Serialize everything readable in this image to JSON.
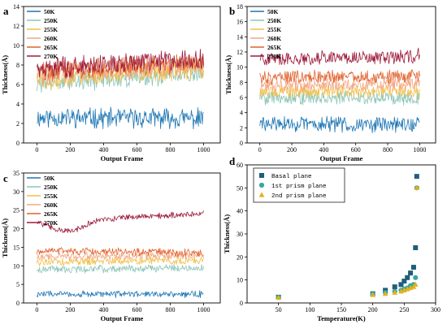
{
  "colors": {
    "50K": "#1f77b4",
    "250K": "#8cc5b7",
    "255K": "#f2c04a",
    "260K": "#f4a582",
    "265K": "#e0622e",
    "270K": "#9e1b3c",
    "basal": "#1f5e7a",
    "prism1": "#3aa6a3",
    "prism2": "#e3b21c"
  },
  "chart_data": [
    {
      "panel": "a",
      "type": "line",
      "xlabel": "Output Frame",
      "ylabel": "Thickness(Å)",
      "xlim": [
        -80,
        1100
      ],
      "ylim": [
        0,
        14
      ],
      "xticks": [
        0,
        200,
        400,
        600,
        800,
        1000
      ],
      "yticks": [
        0,
        2,
        4,
        6,
        8,
        10,
        12,
        14
      ],
      "legend_position": "top-left",
      "series": [
        {
          "name": "50K",
          "color_key": "50K",
          "start": 2.6,
          "end": 2.5,
          "noise": 0.9
        },
        {
          "name": "250K",
          "color_key": "250K",
          "start": 6.0,
          "end": 7.2,
          "noise": 0.9
        },
        {
          "name": "255K",
          "color_key": "255K",
          "start": 6.5,
          "end": 7.6,
          "noise": 0.9
        },
        {
          "name": "260K",
          "color_key": "260K",
          "start": 7.0,
          "end": 8.0,
          "noise": 0.9
        },
        {
          "name": "265K",
          "color_key": "265K",
          "start": 7.3,
          "end": 8.3,
          "noise": 0.9
        },
        {
          "name": "270K",
          "color_key": "270K",
          "start": 7.6,
          "end": 8.7,
          "noise": 0.9
        }
      ]
    },
    {
      "panel": "b",
      "type": "line",
      "xlabel": "Output Frame",
      "ylabel": "Thickness(Å)",
      "xlim": [
        -80,
        1100
      ],
      "ylim": [
        0,
        18
      ],
      "xticks": [
        0,
        200,
        400,
        600,
        800,
        1000
      ],
      "yticks": [
        0,
        2,
        4,
        6,
        8,
        10,
        12,
        14,
        16,
        18
      ],
      "legend_position": "top-left",
      "series": [
        {
          "name": "50K",
          "color_key": "50K",
          "start": 2.5,
          "end": 2.4,
          "noise": 0.9
        },
        {
          "name": "250K",
          "color_key": "250K",
          "start": 6.0,
          "end": 6.0,
          "noise": 0.8
        },
        {
          "name": "255K",
          "color_key": "255K",
          "start": 6.8,
          "end": 6.8,
          "noise": 0.8
        },
        {
          "name": "260K",
          "color_key": "260K",
          "start": 7.6,
          "end": 7.7,
          "noise": 0.8
        },
        {
          "name": "265K",
          "color_key": "265K",
          "start": 8.6,
          "end": 8.8,
          "noise": 0.8
        },
        {
          "name": "270K",
          "color_key": "270K",
          "start": 11.0,
          "end": 11.5,
          "noise": 0.8
        }
      ]
    },
    {
      "panel": "c",
      "type": "line",
      "xlabel": "Output Frame",
      "ylabel": "Thickness(Å)",
      "xlim": [
        -80,
        1100
      ],
      "ylim": [
        0,
        35
      ],
      "xticks": [
        0,
        200,
        400,
        600,
        800,
        1000
      ],
      "yticks": [
        0,
        5,
        10,
        15,
        20,
        25,
        30,
        35
      ],
      "legend_position": "top-left",
      "series": [
        {
          "name": "50K",
          "color_key": "50K",
          "start": 2.4,
          "end": 2.4,
          "noise": 0.8
        },
        {
          "name": "250K",
          "color_key": "250K",
          "start": 9.0,
          "end": 9.5,
          "noise": 0.9
        },
        {
          "name": "255K",
          "color_key": "255K",
          "start": 11.0,
          "end": 11.5,
          "noise": 0.9
        },
        {
          "name": "260K",
          "color_key": "260K",
          "start": 12.5,
          "end": 12.8,
          "noise": 0.9
        },
        {
          "name": "265K",
          "color_key": "265K",
          "start": 14.0,
          "end": 13.5,
          "noise": 0.9
        },
        {
          "name": "270K",
          "color_key": "270K",
          "start": 22.0,
          "end": 24.0,
          "noise": 0.7,
          "dip_frame": 180,
          "dip_value": 19.5
        }
      ]
    },
    {
      "panel": "d",
      "type": "scatter",
      "xlabel": "Temperature(K)",
      "ylabel": "Thickness(Å)",
      "xlim": [
        0,
        300
      ],
      "ylim": [
        0,
        60
      ],
      "xticks": [
        50,
        100,
        150,
        200,
        250,
        300
      ],
      "yticks": [
        0,
        10,
        20,
        30,
        40,
        50,
        60
      ],
      "legend_position": "top-left",
      "series": [
        {
          "name": "Basal plane",
          "marker": "square",
          "color_key": "basal",
          "x": [
            50,
            200,
            220,
            235,
            245,
            250,
            255,
            260,
            265,
            268,
            270
          ],
          "y": [
            2.5,
            4.0,
            5.5,
            7.0,
            8.0,
            9.5,
            11.0,
            13.0,
            15.5,
            24.0,
            55.0
          ]
        },
        {
          "name": "1st prism plane",
          "marker": "circle",
          "color_key": "prism1",
          "x": [
            50,
            200,
            220,
            235,
            245,
            250,
            255,
            260,
            265,
            268,
            270
          ],
          "y": [
            2.4,
            3.8,
            4.5,
            5.0,
            5.5,
            6.0,
            6.5,
            7.5,
            8.0,
            11.0,
            50.0
          ]
        },
        {
          "name": "2nd prism plane",
          "marker": "triangle",
          "color_key": "prism2",
          "x": [
            50,
            200,
            220,
            235,
            245,
            250,
            255,
            260,
            265,
            268,
            270
          ],
          "y": [
            2.3,
            3.5,
            4.0,
            4.5,
            5.0,
            5.5,
            6.0,
            6.5,
            7.0,
            8.0,
            50.0
          ]
        }
      ]
    }
  ]
}
